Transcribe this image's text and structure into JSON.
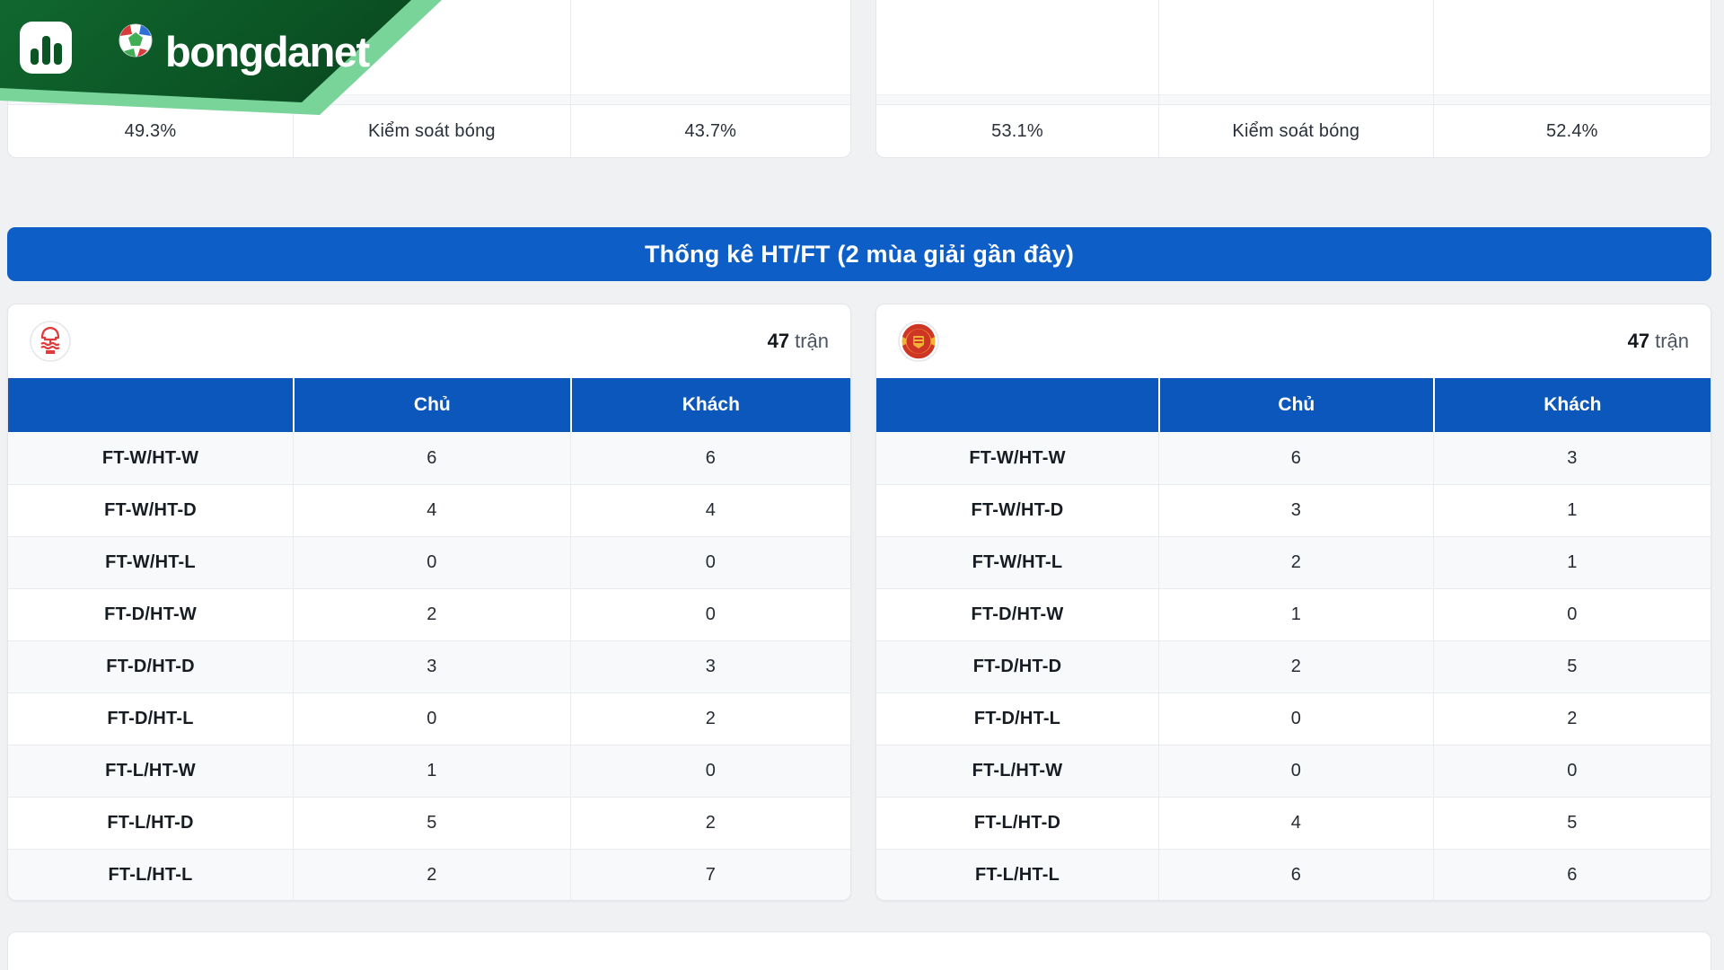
{
  "brand": {
    "name": "bongdanet"
  },
  "possession": {
    "left": {
      "home_value": "49.3%",
      "label": "Kiểm soát bóng",
      "away_value": "43.7%"
    },
    "right": {
      "home_value": "53.1%",
      "label": "Kiểm soát bóng",
      "away_value": "52.4%"
    }
  },
  "banner": {
    "title": "Thống kê HT/FT (2 mùa giải gần đây)"
  },
  "htft": {
    "col_home": "Chủ",
    "col_away": "Khách",
    "left": {
      "team_icon": "nottingham-forest-crest",
      "matches_count": "47",
      "matches_label": "trận",
      "rows": [
        {
          "label": "FT-W/HT-W",
          "home": "6",
          "away": "6"
        },
        {
          "label": "FT-W/HT-D",
          "home": "4",
          "away": "4"
        },
        {
          "label": "FT-W/HT-L",
          "home": "0",
          "away": "0"
        },
        {
          "label": "FT-D/HT-W",
          "home": "2",
          "away": "0"
        },
        {
          "label": "FT-D/HT-D",
          "home": "3",
          "away": "3"
        },
        {
          "label": "FT-D/HT-L",
          "home": "0",
          "away": "2"
        },
        {
          "label": "FT-L/HT-W",
          "home": "1",
          "away": "0"
        },
        {
          "label": "FT-L/HT-D",
          "home": "5",
          "away": "2"
        },
        {
          "label": "FT-L/HT-L",
          "home": "2",
          "away": "7"
        }
      ]
    },
    "right": {
      "team_icon": "manchester-united-crest",
      "matches_count": "47",
      "matches_label": "trận",
      "rows": [
        {
          "label": "FT-W/HT-W",
          "home": "6",
          "away": "3"
        },
        {
          "label": "FT-W/HT-D",
          "home": "3",
          "away": "1"
        },
        {
          "label": "FT-W/HT-L",
          "home": "2",
          "away": "1"
        },
        {
          "label": "FT-D/HT-W",
          "home": "1",
          "away": "0"
        },
        {
          "label": "FT-D/HT-D",
          "home": "2",
          "away": "5"
        },
        {
          "label": "FT-D/HT-L",
          "home": "0",
          "away": "2"
        },
        {
          "label": "FT-L/HT-W",
          "home": "0",
          "away": "0"
        },
        {
          "label": "FT-L/HT-D",
          "home": "4",
          "away": "5"
        },
        {
          "label": "FT-L/HT-L",
          "home": "6",
          "away": "6"
        }
      ]
    }
  },
  "colors": {
    "accent_blue": "#0b57bb",
    "accent_blue_bright": "#0d5fc7",
    "brand_green": "#0b5424",
    "brand_green_light": "#79d49a",
    "page_bg": "#f0f1f3",
    "row_alt": "#f8f9fb",
    "muted_text": "#4d5562",
    "forest_red": "#e03a3a",
    "united_red": "#cf3525",
    "united_yellow": "#f2b437"
  }
}
